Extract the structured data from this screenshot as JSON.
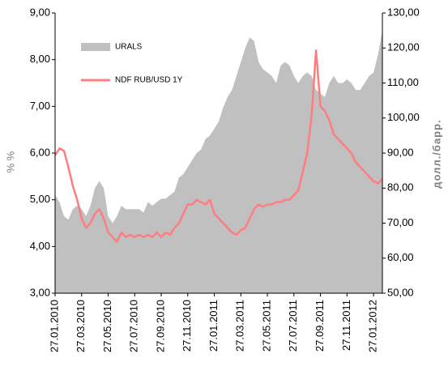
{
  "chart_data": {
    "type": "area-line",
    "y_label": "% %",
    "y2_label": "долл./барр.",
    "categories": [
      "27.01.2010",
      null,
      null,
      null,
      null,
      null,
      "27.03.2010",
      null,
      null,
      null,
      null,
      null,
      "27.05.2010",
      null,
      null,
      null,
      null,
      null,
      "27.07.2010",
      null,
      null,
      null,
      null,
      null,
      "27.09.2010",
      null,
      null,
      null,
      null,
      null,
      "27.11.2010",
      null,
      null,
      null,
      null,
      null,
      "27.01.2011",
      null,
      null,
      null,
      null,
      null,
      "27.03.2011",
      null,
      null,
      null,
      null,
      null,
      "27.05.2011",
      null,
      null,
      null,
      null,
      null,
      "27.07.2011",
      null,
      null,
      null,
      null,
      null,
      "27.09.2011",
      null,
      null,
      null,
      null,
      null,
      "27.11.2011",
      null,
      null,
      null,
      null,
      null,
      "27.01.2012",
      null,
      null
    ],
    "series": [
      {
        "name": "URALS",
        "type": "area",
        "axis": "y2",
        "color": "#c0c0c0",
        "values": [
          78,
          76,
          72,
          71,
          74,
          75,
          74,
          72,
          75,
          80,
          82,
          80,
          72,
          70,
          72,
          75,
          74,
          74,
          74,
          74,
          73,
          76,
          75,
          76,
          77,
          77,
          78,
          79,
          83,
          84,
          86,
          88,
          90,
          91,
          94,
          95,
          97,
          99,
          103,
          106,
          108,
          112,
          116,
          120,
          123,
          122,
          116,
          114,
          113,
          112,
          110,
          115,
          116,
          115,
          112,
          110,
          112,
          113,
          112,
          108,
          107,
          106,
          110,
          112,
          110,
          110,
          111,
          110,
          108,
          108,
          110,
          112,
          113,
          118,
          125
        ]
      },
      {
        "name": "NDF RUB/USD 1Y",
        "type": "line",
        "axis": "y",
        "color": "#ff7c80",
        "values": [
          5.95,
          6.1,
          6.05,
          5.7,
          5.3,
          5.0,
          4.6,
          4.4,
          4.5,
          4.7,
          4.8,
          4.6,
          4.3,
          4.2,
          4.1,
          4.3,
          4.2,
          4.25,
          4.2,
          4.25,
          4.2,
          4.25,
          4.2,
          4.3,
          4.2,
          4.3,
          4.25,
          4.4,
          4.5,
          4.7,
          4.9,
          4.9,
          5.0,
          4.95,
          4.9,
          5.0,
          4.7,
          4.6,
          4.5,
          4.4,
          4.3,
          4.25,
          4.35,
          4.4,
          4.6,
          4.8,
          4.9,
          4.85,
          4.9,
          4.9,
          4.95,
          4.95,
          5.0,
          5.0,
          5.1,
          5.2,
          5.6,
          6.0,
          6.8,
          8.2,
          7.0,
          6.9,
          6.7,
          6.4,
          6.3,
          6.2,
          6.1,
          6.0,
          5.8,
          5.7,
          5.6,
          5.5,
          5.4,
          5.35,
          5.45
        ]
      }
    ],
    "ylim": [
      3,
      9
    ],
    "yticks": [
      {
        "value": 3,
        "label": "3,00"
      },
      {
        "value": 4,
        "label": "4,00"
      },
      {
        "value": 5,
        "label": "5,00"
      },
      {
        "value": 6,
        "label": "6,00"
      },
      {
        "value": 7,
        "label": "7,00"
      },
      {
        "value": 8,
        "label": "8,00"
      },
      {
        "value": 9,
        "label": "9,00"
      }
    ],
    "y2lim": [
      50,
      130
    ],
    "y2ticks": [
      {
        "value": 50,
        "label": "50,00"
      },
      {
        "value": 60,
        "label": "60,00"
      },
      {
        "value": 70,
        "label": "70,00"
      },
      {
        "value": 80,
        "label": "80,00"
      },
      {
        "value": 90,
        "label": "90,00"
      },
      {
        "value": 100,
        "label": "100,00"
      },
      {
        "value": 110,
        "label": "110,00"
      },
      {
        "value": 120,
        "label": "120,00"
      },
      {
        "value": 130,
        "label": "130,00"
      }
    ],
    "legend": "upper left",
    "grid": false
  }
}
